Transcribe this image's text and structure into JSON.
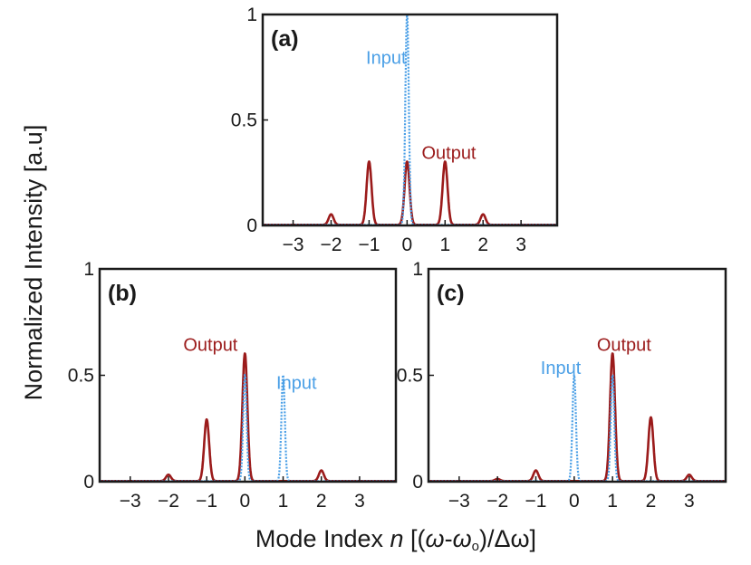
{
  "figure": {
    "ylabel": "Normalized Intensity [a.u]",
    "xlabel_prefix": "Mode Index ",
    "xlabel_var": "n",
    "xlabel_open": " [(",
    "xlabel_omega": "ω",
    "xlabel_dash": "-",
    "xlabel_omega0": "ω",
    "xlabel_sub": "o",
    "xlabel_close": ")/Δω]",
    "colors": {
      "output": "#9b1b1b",
      "input": "#4a9fe6",
      "axis": "#1a1a1a"
    }
  },
  "chart_data": [
    {
      "type": "line",
      "panel": "(a)",
      "xlim": [
        -3.8,
        3.95
      ],
      "ylim": [
        0,
        1
      ],
      "xticks": [
        -3,
        -2,
        -1,
        0,
        1,
        2,
        3
      ],
      "xtick_labels": [
        "−3",
        "−2",
        "−1",
        "0",
        "1",
        "2",
        "3"
      ],
      "yticks": [
        0,
        0.5,
        1
      ],
      "ytick_labels": [
        "0",
        "0.5",
        "1"
      ],
      "series": [
        {
          "name": "Output",
          "style": "solid",
          "peaks": [
            [
              -2,
              0.05
            ],
            [
              -1,
              0.3
            ],
            [
              0,
              0.3
            ],
            [
              1,
              0.3
            ],
            [
              2,
              0.05
            ]
          ]
        },
        {
          "name": "Input",
          "style": "dotted",
          "peaks": [
            [
              0,
              1.0
            ]
          ]
        }
      ],
      "annotations": [
        {
          "text": "Input",
          "x": -0.55,
          "y": 0.8,
          "series": "Input"
        },
        {
          "text": "Output",
          "x": 1.1,
          "y": 0.35,
          "series": "Output"
        }
      ]
    },
    {
      "type": "line",
      "panel": "(b)",
      "xlim": [
        -3.8,
        3.95
      ],
      "ylim": [
        0,
        1
      ],
      "xticks": [
        -3,
        -2,
        -1,
        0,
        1,
        2,
        3
      ],
      "xtick_labels": [
        "−3",
        "−2",
        "−1",
        "0",
        "1",
        "2",
        "3"
      ],
      "yticks": [
        0,
        0.5,
        1
      ],
      "ytick_labels": [
        "0",
        "0.5",
        "1"
      ],
      "series": [
        {
          "name": "Output",
          "style": "solid",
          "peaks": [
            [
              -2,
              0.03
            ],
            [
              -1,
              0.29
            ],
            [
              0,
              0.6
            ],
            [
              2,
              0.05
            ]
          ]
        },
        {
          "name": "Input",
          "style": "dotted",
          "peaks": [
            [
              0,
              0.5
            ],
            [
              1,
              0.5
            ]
          ]
        }
      ],
      "annotations": [
        {
          "text": "Output",
          "x": -0.9,
          "y": 0.65,
          "series": "Output"
        },
        {
          "text": "Input",
          "x": 1.35,
          "y": 0.47,
          "series": "Input"
        }
      ]
    },
    {
      "type": "line",
      "panel": "(c)",
      "xlim": [
        -3.8,
        3.95
      ],
      "ylim": [
        0,
        1
      ],
      "xticks": [
        -3,
        -2,
        -1,
        0,
        1,
        2,
        3
      ],
      "xtick_labels": [
        "−3",
        "−2",
        "−1",
        "0",
        "1",
        "2",
        "3"
      ],
      "yticks": [
        0,
        0.5,
        1
      ],
      "ytick_labels": [
        "0",
        "0.5",
        "1"
      ],
      "series": [
        {
          "name": "Output",
          "style": "solid",
          "peaks": [
            [
              -2,
              0.01
            ],
            [
              -1,
              0.05
            ],
            [
              1,
              0.6
            ],
            [
              2,
              0.3
            ],
            [
              3,
              0.03
            ]
          ]
        },
        {
          "name": "Input",
          "style": "dotted",
          "peaks": [
            [
              0,
              0.5
            ],
            [
              1,
              0.5
            ]
          ]
        }
      ],
      "annotations": [
        {
          "text": "Input",
          "x": -0.35,
          "y": 0.54,
          "series": "Input"
        },
        {
          "text": "Output",
          "x": 1.3,
          "y": 0.65,
          "series": "Output"
        }
      ]
    }
  ]
}
